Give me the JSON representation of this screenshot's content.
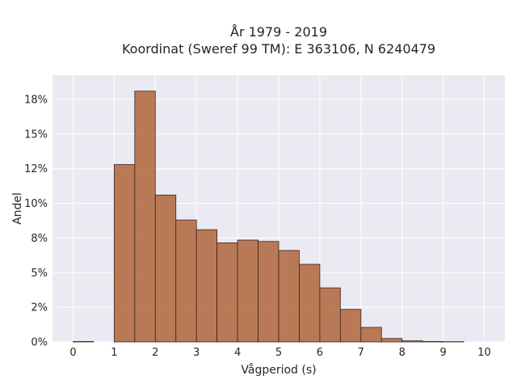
{
  "chart_data": {
    "type": "bar",
    "title_line1": "År 1979 - 2019",
    "title_line2": "Koordinat (Sweref 99 TM): E 363106, N 6240479",
    "xlabel": "Vågperiod (s)",
    "ylabel": "Andel",
    "xlim": [
      -0.5,
      10.5
    ],
    "ylim": [
      0,
      0.1925
    ],
    "x_ticks": [
      0,
      1,
      2,
      3,
      4,
      5,
      6,
      7,
      8,
      9,
      10
    ],
    "y_ticks": [
      {
        "value": 0.0,
        "label": "0%"
      },
      {
        "value": 0.025,
        "label": "2%"
      },
      {
        "value": 0.05,
        "label": "5%"
      },
      {
        "value": 0.075,
        "label": "8%"
      },
      {
        "value": 0.1,
        "label": "10%"
      },
      {
        "value": 0.125,
        "label": "12%"
      },
      {
        "value": 0.15,
        "label": "15%"
      },
      {
        "value": 0.175,
        "label": "18%"
      }
    ],
    "bin_width": 0.5,
    "bins": [
      {
        "x0": 0.0,
        "value": 0.0003
      },
      {
        "x0": 0.5,
        "value": 0.0
      },
      {
        "x0": 1.0,
        "value": 0.128
      },
      {
        "x0": 1.5,
        "value": 0.181
      },
      {
        "x0": 2.0,
        "value": 0.106
      },
      {
        "x0": 2.5,
        "value": 0.088
      },
      {
        "x0": 3.0,
        "value": 0.081
      },
      {
        "x0": 3.5,
        "value": 0.0715
      },
      {
        "x0": 4.0,
        "value": 0.0735
      },
      {
        "x0": 4.5,
        "value": 0.0725
      },
      {
        "x0": 5.0,
        "value": 0.066
      },
      {
        "x0": 5.5,
        "value": 0.056
      },
      {
        "x0": 6.0,
        "value": 0.039
      },
      {
        "x0": 6.5,
        "value": 0.0235
      },
      {
        "x0": 7.0,
        "value": 0.0105
      },
      {
        "x0": 7.5,
        "value": 0.0025
      },
      {
        "x0": 8.0,
        "value": 0.0008
      },
      {
        "x0": 8.5,
        "value": 0.0003
      },
      {
        "x0": 9.0,
        "value": 0.0002
      }
    ],
    "grid": true
  }
}
